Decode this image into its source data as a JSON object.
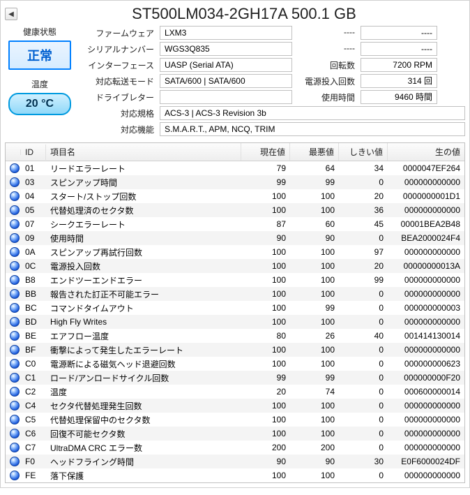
{
  "title": "ST500LM034-2GH17A 500.1 GB",
  "health": {
    "label": "健康状態",
    "status": "正常"
  },
  "temperature": {
    "label": "温度",
    "value": "20 °C"
  },
  "info_left": [
    {
      "label": "ファームウェア",
      "value": "LXM3"
    },
    {
      "label": "シリアルナンバー",
      "value": "WGS3Q835"
    },
    {
      "label": "インターフェース",
      "value": "UASP (Serial ATA)"
    },
    {
      "label": "対応転送モード",
      "value": "SATA/600 | SATA/600"
    },
    {
      "label": "ドライブレター",
      "value": ""
    }
  ],
  "info_right": [
    {
      "label": "----",
      "value": "----"
    },
    {
      "label": "----",
      "value": "----"
    },
    {
      "label": "回転数",
      "value": "7200 RPM"
    },
    {
      "label": "電源投入回数",
      "value": "314 回"
    },
    {
      "label": "使用時間",
      "value": "9460 時間"
    }
  ],
  "info_bottom": [
    {
      "label": "対応規格",
      "value": "ACS-3 | ACS-3 Revision 3b"
    },
    {
      "label": "対応機能",
      "value": "S.M.A.R.T., APM, NCQ, TRIM"
    }
  ],
  "smart_headers": [
    "",
    "ID",
    "項目名",
    "現在値",
    "最悪値",
    "しきい値",
    "生の値"
  ],
  "smart_rows": [
    {
      "id": "01",
      "name": "リードエラーレート",
      "cur": "79",
      "worst": "64",
      "thr": "34",
      "raw": "0000047EF264"
    },
    {
      "id": "03",
      "name": "スピンアップ時間",
      "cur": "99",
      "worst": "99",
      "thr": "0",
      "raw": "000000000000"
    },
    {
      "id": "04",
      "name": "スタート/ストップ回数",
      "cur": "100",
      "worst": "100",
      "thr": "20",
      "raw": "0000000001D1"
    },
    {
      "id": "05",
      "name": "代替処理済のセクタ数",
      "cur": "100",
      "worst": "100",
      "thr": "36",
      "raw": "000000000000"
    },
    {
      "id": "07",
      "name": "シークエラーレート",
      "cur": "87",
      "worst": "60",
      "thr": "45",
      "raw": "00001BEA2B48"
    },
    {
      "id": "09",
      "name": "使用時間",
      "cur": "90",
      "worst": "90",
      "thr": "0",
      "raw": "BEA2000024F4"
    },
    {
      "id": "0A",
      "name": "スピンアップ再試行回数",
      "cur": "100",
      "worst": "100",
      "thr": "97",
      "raw": "000000000000"
    },
    {
      "id": "0C",
      "name": "電源投入回数",
      "cur": "100",
      "worst": "100",
      "thr": "20",
      "raw": "00000000013A"
    },
    {
      "id": "B8",
      "name": "エンドツーエンドエラー",
      "cur": "100",
      "worst": "100",
      "thr": "99",
      "raw": "000000000000"
    },
    {
      "id": "BB",
      "name": "報告された訂正不可能エラー",
      "cur": "100",
      "worst": "100",
      "thr": "0",
      "raw": "000000000000"
    },
    {
      "id": "BC",
      "name": "コマンドタイムアウト",
      "cur": "100",
      "worst": "99",
      "thr": "0",
      "raw": "000000000003"
    },
    {
      "id": "BD",
      "name": "High Fly Writes",
      "cur": "100",
      "worst": "100",
      "thr": "0",
      "raw": "000000000000"
    },
    {
      "id": "BE",
      "name": "エアフロー温度",
      "cur": "80",
      "worst": "26",
      "thr": "40",
      "raw": "001414130014"
    },
    {
      "id": "BF",
      "name": "衝撃によって発生したエラーレート",
      "cur": "100",
      "worst": "100",
      "thr": "0",
      "raw": "000000000000"
    },
    {
      "id": "C0",
      "name": "電源断による磁気ヘッド退避回数",
      "cur": "100",
      "worst": "100",
      "thr": "0",
      "raw": "000000000623"
    },
    {
      "id": "C1",
      "name": "ロード/アンロードサイクル回数",
      "cur": "99",
      "worst": "99",
      "thr": "0",
      "raw": "000000000F20"
    },
    {
      "id": "C2",
      "name": "温度",
      "cur": "20",
      "worst": "74",
      "thr": "0",
      "raw": "000600000014"
    },
    {
      "id": "C4",
      "name": "セクタ代替処理発生回数",
      "cur": "100",
      "worst": "100",
      "thr": "0",
      "raw": "000000000000"
    },
    {
      "id": "C5",
      "name": "代替処理保留中のセクタ数",
      "cur": "100",
      "worst": "100",
      "thr": "0",
      "raw": "000000000000"
    },
    {
      "id": "C6",
      "name": "回復不可能セクタ数",
      "cur": "100",
      "worst": "100",
      "thr": "0",
      "raw": "000000000000"
    },
    {
      "id": "C7",
      "name": "UltraDMA CRC エラー数",
      "cur": "200",
      "worst": "200",
      "thr": "0",
      "raw": "000000000000"
    },
    {
      "id": "F0",
      "name": "ヘッドフライング時間",
      "cur": "90",
      "worst": "90",
      "thr": "30",
      "raw": "E0F6000024DF"
    },
    {
      "id": "FE",
      "name": "落下保護",
      "cur": "100",
      "worst": "100",
      "thr": "0",
      "raw": "000000000000"
    }
  ]
}
